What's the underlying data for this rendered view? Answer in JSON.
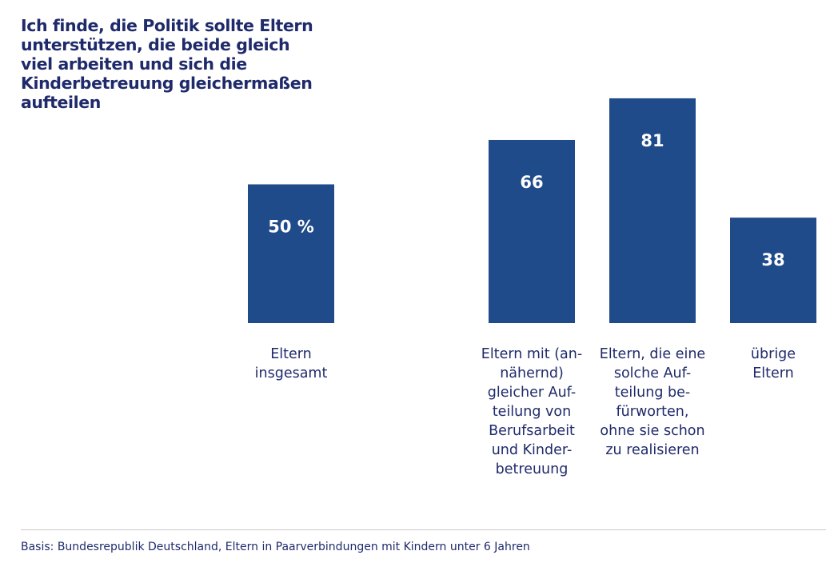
{
  "chart_data": {
    "type": "bar",
    "title": "Ich finde, die Politik sollte Eltern unterstützen, die beide gleich viel arbeiten und sich die Kinderbetreuung gleichermaßen aufteilen",
    "categories": [
      "Eltern insgesamt",
      "Eltern mit (an-nähernd) gleicher Auf-teilung von Berufsarbeit und Kinder-betreuung",
      "Eltern, die eine solche Auf-teilung be-fürworten, ohne sie schon zu realisieren",
      "übrige Eltern"
    ],
    "category_lines": [
      [
        "Eltern",
        "insgesamt"
      ],
      [
        "Eltern mit (an-",
        "nähernd)",
        "gleicher Auf-",
        "teilung von",
        "Berufsarbeit",
        "und Kinder-",
        "betreuung"
      ],
      [
        "Eltern, die eine",
        "solche Auf-",
        "teilung be-",
        "fürworten,",
        "ohne sie schon",
        "zu realisieren"
      ],
      [
        "übrige",
        "Eltern"
      ]
    ],
    "values": [
      50,
      66,
      81,
      38
    ],
    "value_labels": [
      "50 %",
      "66",
      "81",
      "38"
    ],
    "unit": "%",
    "xlabel": "",
    "ylabel": "",
    "ylim": [
      0,
      100
    ],
    "grid": false,
    "legend": "none",
    "colors": {
      "bar": "#1f4b8a",
      "bar_text": "#ffffff",
      "text": "#1f2a6b"
    }
  },
  "footer": {
    "source": "Basis: Bundesrepublik Deutschland, Eltern in Paarverbindungen mit Kindern unter 6 Jahren"
  }
}
